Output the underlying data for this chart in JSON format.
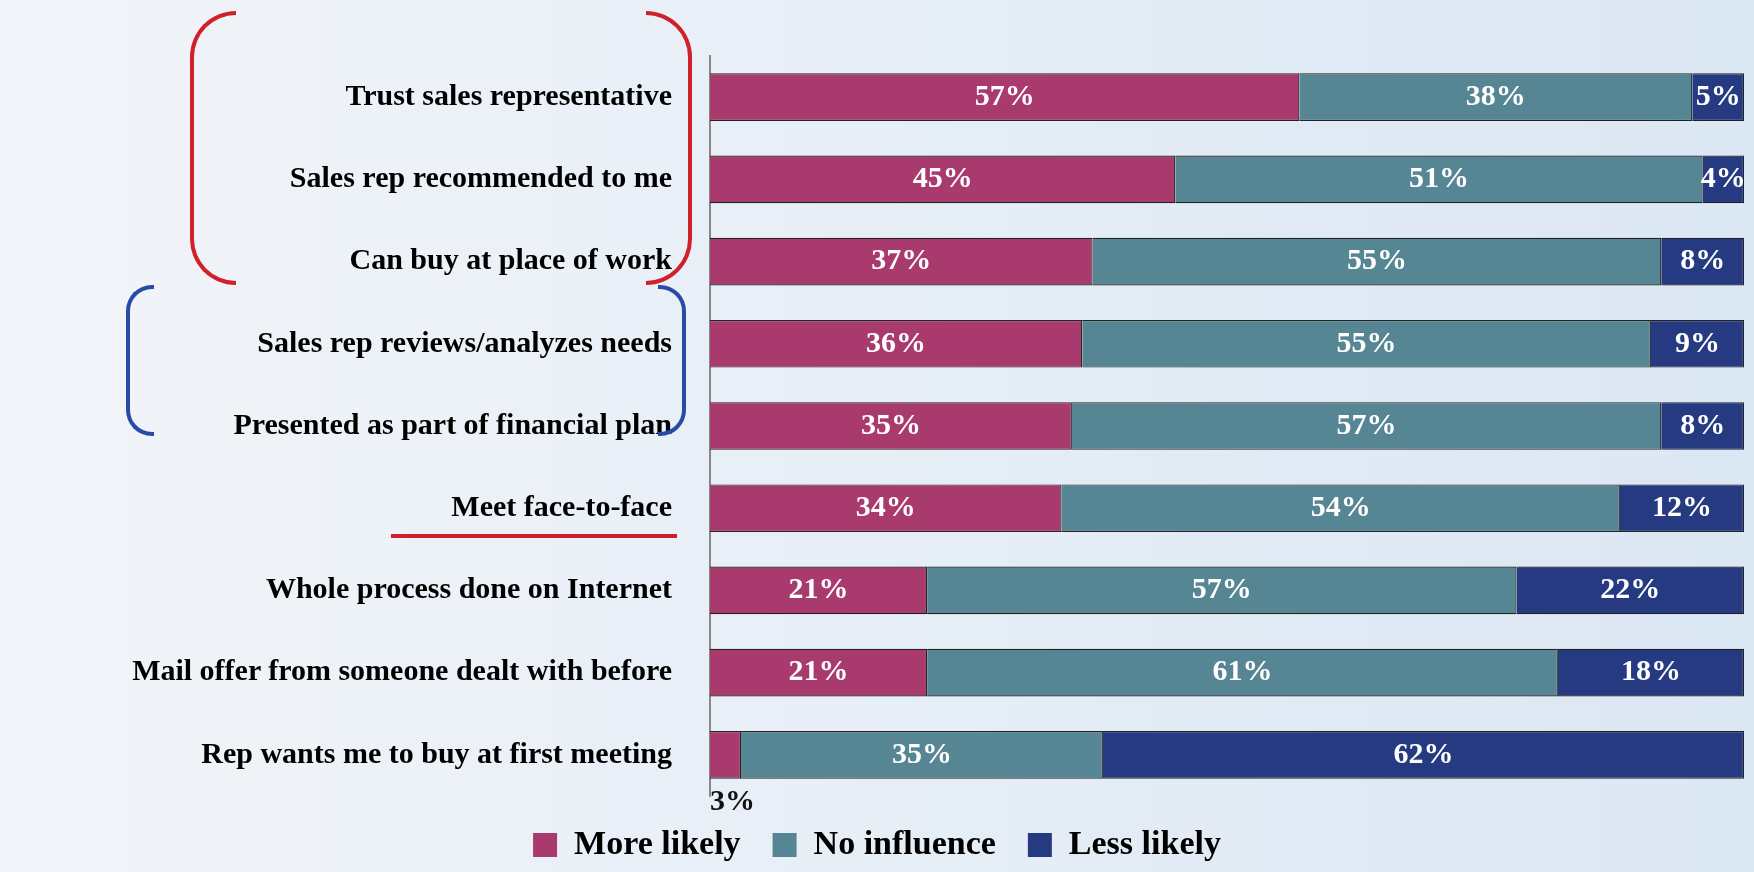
{
  "chart_data": {
    "type": "bar",
    "orientation": "horizontal",
    "stacked": true,
    "categories": [
      "Trust sales representative",
      "Sales rep recommended to me",
      "Can buy at place of work",
      "Sales rep reviews/analyzes needs",
      "Presented as part of financial plan",
      "Meet face-to-face",
      "Whole process done on Internet",
      "Mail offer from someone dealt with before",
      "Rep wants me to buy at first meeting"
    ],
    "series": [
      {
        "name": "More likely",
        "color": "#a83a6e",
        "values": [
          57,
          45,
          37,
          36,
          35,
          34,
          21,
          21,
          3
        ],
        "value_labels": [
          "57%",
          "45%",
          "37%",
          "36%",
          "35%",
          "34%",
          "21%",
          "21%",
          "3%"
        ]
      },
      {
        "name": "No influence",
        "color": "#568693",
        "values": [
          38,
          51,
          55,
          55,
          57,
          54,
          57,
          61,
          35
        ],
        "value_labels": [
          "38%",
          "51%",
          "55%",
          "55%",
          "57%",
          "54%",
          "57%",
          "61%",
          "35%"
        ]
      },
      {
        "name": "Less likely",
        "color": "#253a80",
        "values": [
          5,
          4,
          8,
          9,
          8,
          12,
          22,
          18,
          62
        ],
        "value_labels": [
          "5%",
          "4%",
          "8%",
          "9%",
          "8%",
          "12%",
          "22%",
          "18%",
          "62%"
        ]
      }
    ],
    "xlim": [
      0,
      100
    ],
    "tick_labels": "y",
    "grid": false,
    "legend": "bottom"
  }
}
